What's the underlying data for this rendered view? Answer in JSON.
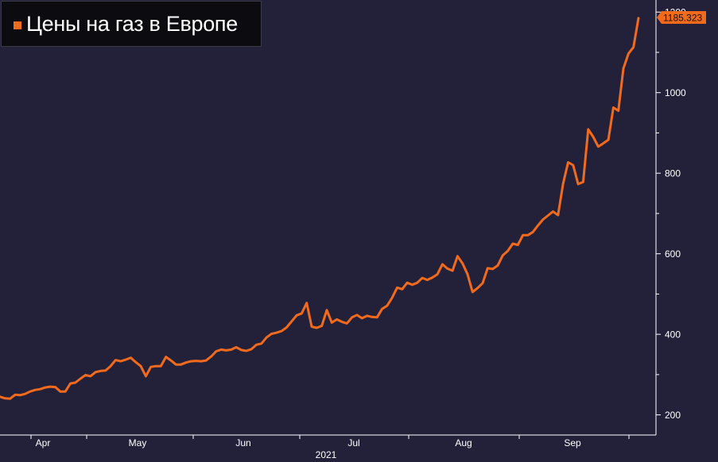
{
  "chart_data": {
    "type": "line",
    "legend": "Цены на газ в Европе",
    "year_label": "2021",
    "last_value_label": "1185.323",
    "ylim": [
      150,
      1230
    ],
    "y_ticks": [
      200,
      400,
      600,
      800,
      1000,
      1200
    ],
    "y_tick_labels": [
      "200",
      "400",
      "600",
      "800",
      "1000",
      "1200"
    ],
    "month_labels": [
      "Apr",
      "May",
      "Jun",
      "Jul",
      "Aug",
      "Sep"
    ],
    "series": [
      {
        "color": "#f26b1d",
        "values": [
          245,
          241,
          240,
          250,
          249,
          252,
          258,
          262,
          264,
          268,
          270,
          269,
          258,
          258,
          278,
          280,
          290,
          299,
          296,
          306,
          309,
          310,
          321,
          336,
          333,
          337,
          342,
          331,
          321,
          296,
          319,
          321,
          321,
          344,
          335,
          325,
          325,
          330,
          333,
          334,
          333,
          335,
          345,
          358,
          362,
          360,
          362,
          368,
          361,
          359,
          363,
          374,
          377,
          392,
          401,
          404,
          408,
          417,
          432,
          447,
          452,
          478,
          419,
          416,
          421,
          460,
          429,
          437,
          431,
          427,
          442,
          448,
          440,
          446,
          443,
          442,
          463,
          471,
          491,
          516,
          512,
          528,
          523,
          528,
          540,
          535,
          541,
          549,
          574,
          563,
          558,
          594,
          576,
          549,
          505,
          515,
          527,
          564,
          562,
          571,
          596,
          607,
          625,
          622,
          646,
          646,
          654,
          670,
          685,
          695,
          705,
          696,
          774,
          827,
          820,
          773,
          778,
          909,
          890,
          866,
          874,
          883,
          963,
          955,
          1060,
          1097,
          1113,
          1185
        ]
      }
    ],
    "colors": {
      "background": "#23213a",
      "line": "#f26b1d",
      "legend_bg": "#0b0b10",
      "axis": "#ffffff"
    }
  }
}
